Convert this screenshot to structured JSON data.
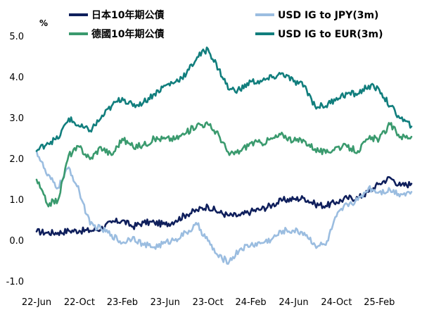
{
  "chart_data": {
    "type": "line",
    "ylabel": "%",
    "ylim": [
      -1.0,
      5.0
    ],
    "yticks": [
      "5.0",
      "4.0",
      "3.0",
      "2.0",
      "1.0",
      "0.0",
      "-1.0"
    ],
    "x_ticks": [
      "22-Jun",
      "22-Oct",
      "23-Feb",
      "23-Jun",
      "23-Oct",
      "24-Feb",
      "24-Jun",
      "24-Oct",
      "25-Feb"
    ],
    "x_start": "2022-06",
    "x_end": "2025-05",
    "grid": false,
    "legend_position": "top",
    "series": [
      {
        "name": "日本10年期公債",
        "color": "#0f1f5c",
        "x": [
          "2022-06",
          "2022-07",
          "2022-08",
          "2022-09",
          "2022-10",
          "2022-11",
          "2022-12",
          "2023-01",
          "2023-02",
          "2023-03",
          "2023-04",
          "2023-05",
          "2023-06",
          "2023-07",
          "2023-08",
          "2023-09",
          "2023-10",
          "2023-11",
          "2023-12",
          "2024-01",
          "2024-02",
          "2024-03",
          "2024-04",
          "2024-05",
          "2024-06",
          "2024-07",
          "2024-08",
          "2024-09",
          "2024-10",
          "2024-11",
          "2024-12",
          "2025-01",
          "2025-02",
          "2025-03",
          "2025-04",
          "2025-05"
        ],
        "values": [
          0.23,
          0.2,
          0.2,
          0.25,
          0.25,
          0.25,
          0.3,
          0.45,
          0.5,
          0.35,
          0.45,
          0.45,
          0.4,
          0.5,
          0.65,
          0.75,
          0.85,
          0.7,
          0.62,
          0.62,
          0.72,
          0.78,
          0.88,
          1.0,
          1.02,
          1.05,
          0.9,
          0.86,
          0.95,
          1.05,
          1.05,
          1.2,
          1.4,
          1.55,
          1.35,
          1.4
        ]
      },
      {
        "name": "USD IG to JPY(3m)",
        "color": "#9bbde0",
        "x": [
          "2022-06",
          "2022-07",
          "2022-08",
          "2022-09",
          "2022-10",
          "2022-11",
          "2022-12",
          "2023-01",
          "2023-02",
          "2023-03",
          "2023-04",
          "2023-05",
          "2023-06",
          "2023-07",
          "2023-08",
          "2023-09",
          "2023-10",
          "2023-11",
          "2023-12",
          "2024-01",
          "2024-02",
          "2024-03",
          "2024-04",
          "2024-05",
          "2024-06",
          "2024-07",
          "2024-08",
          "2024-09",
          "2024-10",
          "2024-11",
          "2024-12",
          "2025-01",
          "2025-02",
          "2025-03",
          "2025-04",
          "2025-05"
        ],
        "values": [
          2.2,
          1.6,
          1.3,
          1.8,
          1.2,
          0.4,
          0.3,
          0.15,
          -0.05,
          0.1,
          -0.1,
          -0.15,
          -0.05,
          0.05,
          0.2,
          0.4,
          0.0,
          -0.4,
          -0.5,
          -0.2,
          -0.1,
          -0.05,
          0.05,
          0.25,
          0.25,
          0.2,
          -0.1,
          -0.1,
          0.6,
          0.9,
          1.0,
          1.3,
          1.2,
          1.25,
          1.15,
          1.2
        ]
      },
      {
        "name": "德國10年期公債",
        "color": "#3a9a6e",
        "x": [
          "2022-06",
          "2022-07",
          "2022-08",
          "2022-09",
          "2022-10",
          "2022-11",
          "2022-12",
          "2023-01",
          "2023-02",
          "2023-03",
          "2023-04",
          "2023-05",
          "2023-06",
          "2023-07",
          "2023-08",
          "2023-09",
          "2023-10",
          "2023-11",
          "2023-12",
          "2024-01",
          "2024-02",
          "2024-03",
          "2024-04",
          "2024-05",
          "2024-06",
          "2024-07",
          "2024-08",
          "2024-09",
          "2024-10",
          "2024-11",
          "2024-12",
          "2025-01",
          "2025-02",
          "2025-03",
          "2025-04",
          "2025-05"
        ],
        "values": [
          1.5,
          0.9,
          1.0,
          2.1,
          2.3,
          2.0,
          2.3,
          2.1,
          2.5,
          2.3,
          2.35,
          2.5,
          2.5,
          2.5,
          2.65,
          2.85,
          2.85,
          2.6,
          2.1,
          2.2,
          2.4,
          2.4,
          2.5,
          2.6,
          2.45,
          2.45,
          2.25,
          2.15,
          2.3,
          2.3,
          2.2,
          2.5,
          2.5,
          2.85,
          2.55,
          2.55
        ]
      },
      {
        "name": "USD IG to EUR(3m)",
        "color": "#117e7d",
        "x": [
          "2022-06",
          "2022-07",
          "2022-08",
          "2022-09",
          "2022-10",
          "2022-11",
          "2022-12",
          "2023-01",
          "2023-02",
          "2023-03",
          "2023-04",
          "2023-05",
          "2023-06",
          "2023-07",
          "2023-08",
          "2023-09",
          "2023-10",
          "2023-11",
          "2023-12",
          "2024-01",
          "2024-02",
          "2024-03",
          "2024-04",
          "2024-05",
          "2024-06",
          "2024-07",
          "2024-08",
          "2024-09",
          "2024-10",
          "2024-11",
          "2024-12",
          "2025-01",
          "2025-02",
          "2025-03",
          "2025-04",
          "2025-05"
        ],
        "values": [
          2.2,
          2.4,
          2.5,
          3.0,
          2.8,
          2.7,
          3.0,
          3.3,
          3.5,
          3.3,
          3.4,
          3.6,
          3.8,
          3.9,
          4.1,
          4.5,
          4.7,
          4.2,
          3.7,
          3.7,
          3.9,
          3.9,
          4.0,
          4.1,
          3.9,
          3.8,
          3.3,
          3.3,
          3.5,
          3.6,
          3.6,
          3.8,
          3.7,
          3.3,
          3.0,
          2.8
        ]
      }
    ]
  }
}
